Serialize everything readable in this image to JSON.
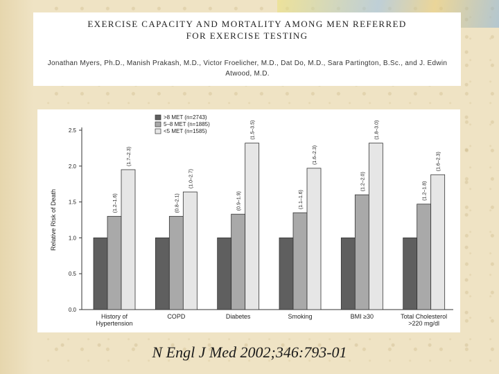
{
  "slide": {
    "title": "EXERCISE CAPACITY AND MORTALITY AMONG MEN REFERRED\nFOR EXERCISE TESTING",
    "authors": "Jonathan Myers, Ph.D., Manish Prakash, M.D., Victor Froelicher, M.D., Dat Do, M.D., Sara Partington, B.Sc., and J. Edwin Atwood, M.D.",
    "citation": "N Engl J Med 2002;346:793-01"
  },
  "chart_data": {
    "type": "bar",
    "title": "",
    "xlabel": "",
    "ylabel": "Relative Risk of Death",
    "ylim": [
      0,
      2.5
    ],
    "yticks": [
      "0.0",
      "0.5",
      "1.0",
      "1.5",
      "2.0",
      "2.5"
    ],
    "categories": [
      [
        "History of",
        "Hypertension"
      ],
      [
        "COPD"
      ],
      [
        "Diabetes"
      ],
      [
        "Smoking"
      ],
      [
        "BMI ≥30"
      ],
      [
        "Total Cholesterol",
        ">220 mg/dl"
      ]
    ],
    "series": [
      {
        "name": ">8 MET (n=2743)",
        "color": "#5f5f5f",
        "values": [
          1.0,
          1.0,
          1.0,
          1.0,
          1.0,
          1.0
        ],
        "ci": [
          "",
          "",
          "",
          "",
          "",
          ""
        ]
      },
      {
        "name": "5–8 MET (n=1885)",
        "color": "#a9a9a9",
        "values": [
          1.3,
          1.3,
          1.33,
          1.35,
          1.6,
          1.47
        ],
        "ci": [
          "(1.2–1.6)",
          "(0.8–2.1)",
          "(0.9–1.9)",
          "(1.1–1.6)",
          "(1.2–2.0)",
          "(1.2–1.8)"
        ]
      },
      {
        "name": "<5 MET (n=1585)",
        "color": "#e6e6e6",
        "values": [
          1.95,
          1.64,
          2.32,
          1.97,
          2.32,
          1.88
        ],
        "ci": [
          "(1.7–2.3)",
          "(1.0–2.7)",
          "(1.5–3.5)",
          "(1.6–2.3)",
          "(1.8–3.0)",
          "(1.6–2.3)"
        ]
      }
    ],
    "legend_position": "top-left",
    "grid": false
  }
}
